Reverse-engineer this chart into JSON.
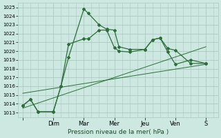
{
  "xlabel": "Pression niveau de la mer( hPa )",
  "ylim": [
    1012.5,
    1025.5
  ],
  "yticks": [
    1013,
    1014,
    1015,
    1016,
    1017,
    1018,
    1019,
    1020,
    1021,
    1022,
    1023,
    1024,
    1025
  ],
  "xtick_labels": [
    "",
    "Dim",
    "Mar",
    "Mer",
    "Jeu",
    "Ven",
    "S"
  ],
  "xtick_pos": [
    0,
    2,
    4,
    6,
    8,
    10,
    12
  ],
  "bg_color": "#cce8e0",
  "grid_color": "#a8c8c0",
  "line_color": "#2d6e3a",
  "line1_x": [
    0,
    0.5,
    1.0,
    2.0,
    2.5,
    3.0,
    4.0,
    4.3,
    5.0,
    5.5,
    6.0,
    6.3,
    7.0,
    8.0,
    8.5,
    9.0,
    9.5,
    10.0,
    11.0,
    12.0
  ],
  "line1_y": [
    1013.8,
    1014.5,
    1013.1,
    1013.1,
    1016.0,
    1019.3,
    1024.8,
    1024.3,
    1023.0,
    1022.5,
    1022.4,
    1020.5,
    1020.2,
    1020.2,
    1021.3,
    1021.5,
    1020.3,
    1020.1,
    1018.6,
    1018.6
  ],
  "line2_x": [
    0,
    0.5,
    1.0,
    2.0,
    2.5,
    3.0,
    4.0,
    4.3,
    5.0,
    5.5,
    6.0,
    6.3,
    7.0,
    8.0,
    8.5,
    9.0,
    9.5,
    10.0,
    11.0,
    12.0
  ],
  "line2_y": [
    1013.8,
    1014.5,
    1013.1,
    1013.1,
    1016.0,
    1020.8,
    1021.4,
    1021.4,
    1022.4,
    1022.4,
    1020.4,
    1020.0,
    1019.9,
    1020.2,
    1021.3,
    1021.5,
    1019.9,
    1018.5,
    1019.0,
    1018.6
  ],
  "line3_x": [
    0,
    12
  ],
  "line3_y": [
    1013.5,
    1020.5
  ],
  "line4_x": [
    0,
    12
  ],
  "line4_y": [
    1015.2,
    1018.5
  ]
}
